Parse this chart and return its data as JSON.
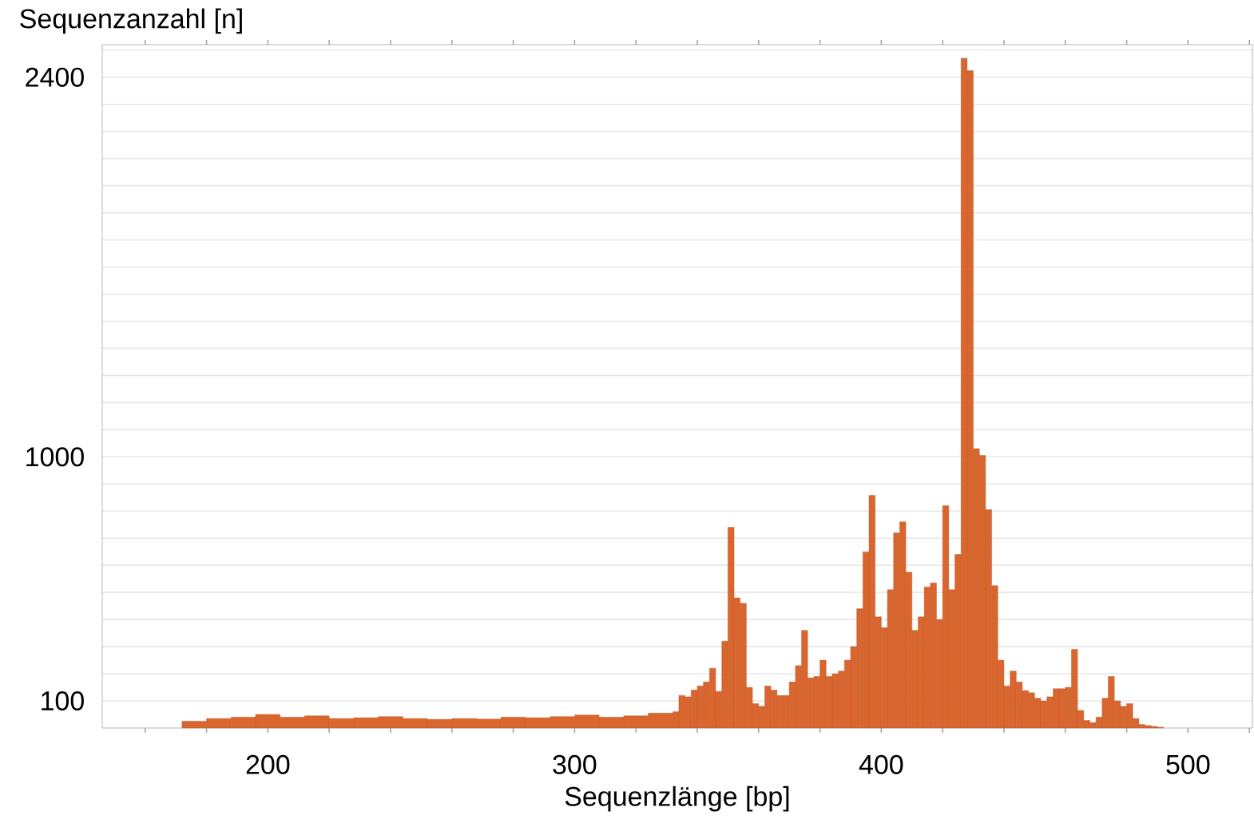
{
  "chart_data": {
    "type": "histogram",
    "xlabel": "Sequenzlänge [bp]",
    "ylabel": "Sequenzanzahl [n]",
    "color": "#d9662e",
    "bins": [
      172,
      180,
      188,
      196,
      204,
      212,
      220,
      228,
      236,
      244,
      252,
      260,
      268,
      276,
      284,
      292,
      300,
      308,
      316,
      324,
      332,
      334,
      336,
      338,
      340,
      342,
      344,
      346,
      348,
      350,
      352,
      354,
      356,
      358,
      360,
      362,
      364,
      366,
      368,
      370,
      372,
      374,
      376,
      378,
      380,
      382,
      384,
      386,
      388,
      390,
      392,
      394,
      396,
      398,
      400,
      402,
      404,
      406,
      408,
      410,
      412,
      414,
      416,
      418,
      420,
      422,
      424,
      426,
      428,
      430,
      432,
      434,
      436,
      438,
      440,
      442,
      444,
      446,
      448,
      450,
      452,
      454,
      456,
      458,
      460,
      462,
      464,
      466,
      468,
      470,
      472,
      474,
      476,
      478,
      480,
      482,
      484,
      486,
      488,
      490,
      492
    ],
    "values": [
      25,
      35,
      40,
      50,
      40,
      45,
      35,
      38,
      42,
      35,
      32,
      35,
      33,
      40,
      38,
      42,
      48,
      40,
      45,
      55,
      60,
      120,
      115,
      140,
      155,
      170,
      220,
      135,
      320,
      740,
      480,
      460,
      150,
      90,
      80,
      155,
      140,
      120,
      120,
      170,
      230,
      360,
      185,
      190,
      250,
      190,
      200,
      210,
      250,
      300,
      440,
      650,
      858,
      410,
      370,
      510,
      720,
      760,
      575,
      360,
      410,
      520,
      535,
      400,
      820,
      510,
      640,
      2470,
      2424,
      1030,
      1005,
      805,
      525,
      250,
      155,
      210,
      170,
      138,
      130,
      110,
      100,
      115,
      145,
      145,
      150,
      290,
      65,
      28,
      20,
      40,
      110,
      190,
      100,
      80,
      90,
      35,
      13,
      9,
      6,
      3
    ],
    "xlim": [
      146,
      521
    ],
    "ylim": [
      0,
      2520
    ],
    "xticks": [
      {
        "value": 160,
        "label": null
      },
      {
        "value": 180,
        "label": null
      },
      200,
      {
        "value": 220,
        "label": null
      },
      {
        "value": 240,
        "label": null
      },
      {
        "value": 260,
        "label": null
      },
      {
        "value": 280,
        "label": null
      },
      300,
      {
        "value": 320,
        "label": null
      },
      {
        "value": 340,
        "label": null
      },
      {
        "value": 360,
        "label": null
      },
      {
        "value": 380,
        "label": null
      },
      400,
      {
        "value": 420,
        "label": null
      },
      {
        "value": 440,
        "label": null
      },
      {
        "value": 460,
        "label": null
      },
      {
        "value": 480,
        "label": null
      },
      500,
      {
        "value": 520,
        "label": null
      }
    ],
    "yticks": [
      100,
      {
        "value": 200,
        "label": null
      },
      {
        "value": 300,
        "label": null
      },
      {
        "value": 400,
        "label": null
      },
      {
        "value": 500,
        "label": null
      },
      {
        "value": 600,
        "label": null
      },
      {
        "value": 700,
        "label": null
      },
      {
        "value": 800,
        "label": null
      },
      {
        "value": 900,
        "label": null
      },
      1000,
      {
        "value": 1100,
        "label": null
      },
      {
        "value": 1200,
        "label": null
      },
      {
        "value": 1300,
        "label": null
      },
      {
        "value": 1400,
        "label": null
      },
      {
        "value": 1500,
        "label": null
      },
      {
        "value": 1600,
        "label": null
      },
      {
        "value": 1700,
        "label": null
      },
      {
        "value": 1800,
        "label": null
      },
      {
        "value": 1900,
        "label": null
      },
      {
        "value": 2000,
        "label": null
      },
      {
        "value": 2100,
        "label": null
      },
      {
        "value": 2200,
        "label": null
      },
      {
        "value": 2300,
        "label": null
      },
      2400,
      {
        "value": 2500,
        "label": null
      }
    ],
    "grid": "y"
  }
}
